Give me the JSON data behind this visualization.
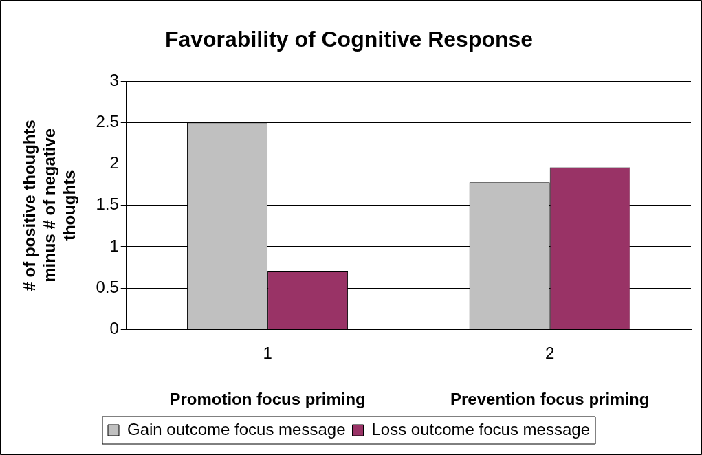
{
  "chart_data": {
    "type": "bar",
    "title": "Favorability of Cognitive Response",
    "ylabel": "# of positive thoughts minus # of negative thoughts",
    "categories": [
      "1",
      "2"
    ],
    "series": [
      {
        "name": "Gain outcome focus message",
        "color": "#c0c0c0",
        "values": [
          2.5,
          1.78
        ]
      },
      {
        "name": "Loss outcome focus message",
        "color": "#993366",
        "values": [
          0.7,
          1.96
        ]
      }
    ],
    "ylim": [
      0,
      3
    ],
    "yticks": [
      0,
      0.5,
      1,
      1.5,
      2,
      2.5,
      3
    ],
    "grid": "y",
    "legend": "bottom",
    "annotations": [
      "Promotion focus priming",
      "Prevention focus priming"
    ]
  }
}
